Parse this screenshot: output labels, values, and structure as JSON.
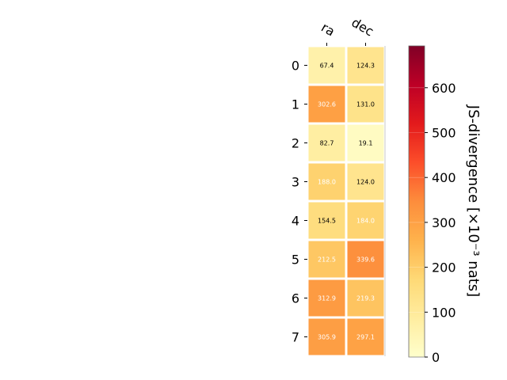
{
  "chart_data": {
    "type": "heatmap",
    "columns": [
      "ra",
      "dec"
    ],
    "rows": [
      "0",
      "1",
      "2",
      "3",
      "4",
      "5",
      "6",
      "7"
    ],
    "values": [
      [
        67.4,
        124.3
      ],
      [
        302.6,
        131.0
      ],
      [
        82.7,
        19.1
      ],
      [
        188.0,
        124.0
      ],
      [
        154.5,
        184.0
      ],
      [
        212.5,
        339.6
      ],
      [
        312.9,
        219.3
      ],
      [
        305.9,
        297.1
      ]
    ],
    "value_labels": [
      [
        "67.4",
        "124.3"
      ],
      [
        "302.6",
        "131.0"
      ],
      [
        "82.7",
        "19.1"
      ],
      [
        "188.0",
        "124.0"
      ],
      [
        "154.5",
        "184.0"
      ],
      [
        "212.5",
        "339.6"
      ],
      [
        "312.9",
        "219.3"
      ],
      [
        "305.9",
        "297.1"
      ]
    ],
    "colorbar": {
      "label": "JS-divergence [×10⁻³ nats]",
      "range": [
        0,
        693.1
      ],
      "ticks": [
        0,
        100,
        200,
        300,
        400,
        500,
        600
      ],
      "tick_labels": [
        "0",
        "100",
        "200",
        "300",
        "400",
        "500",
        "600"
      ],
      "colormap": "YlOrRd"
    }
  }
}
